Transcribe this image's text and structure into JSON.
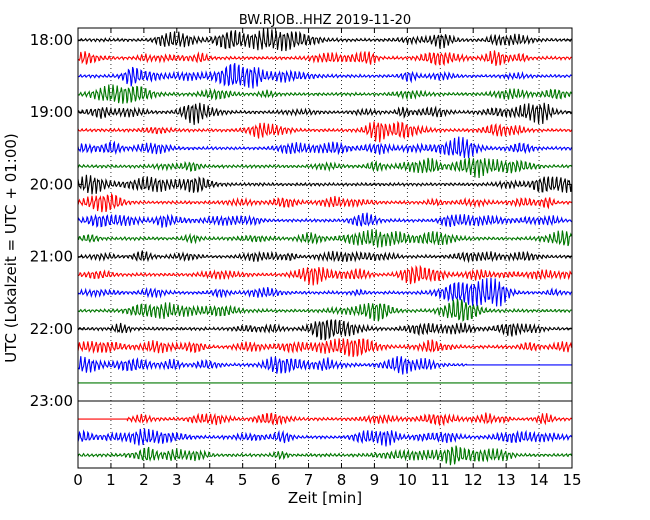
{
  "chart_data": {
    "type": "line",
    "title": "BW.RJOB..HHZ 2019-11-20",
    "xlabel": "Zeit  [min]",
    "ylabel": "UTC (Lokalzeit = UTC + 01:00)",
    "xlim": [
      0,
      15
    ],
    "xticks": [
      "0",
      "1",
      "2",
      "3",
      "4",
      "5",
      "6",
      "7",
      "8",
      "9",
      "10",
      "11",
      "12",
      "13",
      "14",
      "15"
    ],
    "yticks": [
      {
        "label": "18:00",
        "row": 0
      },
      {
        "label": "19:00",
        "row": 4
      },
      {
        "label": "20:00",
        "row": 8
      },
      {
        "label": "21:00",
        "row": 12
      },
      {
        "label": "22:00",
        "row": 16
      },
      {
        "label": "23:00",
        "row": 20
      }
    ],
    "row_interval_minutes": 15,
    "grid": "vertical dotted",
    "colors": [
      "#000000",
      "#ff0000",
      "#0000ff",
      "#007700"
    ],
    "traces": [
      {
        "start": "18:00",
        "color": "#000000",
        "data_start_min": 0,
        "data_end_min": 15
      },
      {
        "start": "18:15",
        "color": "#ff0000",
        "data_start_min": 0,
        "data_end_min": 15
      },
      {
        "start": "18:30",
        "color": "#0000ff",
        "data_start_min": 0,
        "data_end_min": 15
      },
      {
        "start": "18:45",
        "color": "#007700",
        "data_start_min": 0,
        "data_end_min": 15
      },
      {
        "start": "19:00",
        "color": "#000000",
        "data_start_min": 0,
        "data_end_min": 15
      },
      {
        "start": "19:15",
        "color": "#ff0000",
        "data_start_min": 0,
        "data_end_min": 15
      },
      {
        "start": "19:30",
        "color": "#0000ff",
        "data_start_min": 0,
        "data_end_min": 15
      },
      {
        "start": "19:45",
        "color": "#007700",
        "data_start_min": 0,
        "data_end_min": 15
      },
      {
        "start": "20:00",
        "color": "#000000",
        "data_start_min": 0,
        "data_end_min": 15
      },
      {
        "start": "20:15",
        "color": "#ff0000",
        "data_start_min": 0,
        "data_end_min": 15
      },
      {
        "start": "20:30",
        "color": "#0000ff",
        "data_start_min": 0,
        "data_end_min": 15
      },
      {
        "start": "20:45",
        "color": "#007700",
        "data_start_min": 0,
        "data_end_min": 15
      },
      {
        "start": "21:00",
        "color": "#000000",
        "data_start_min": 0,
        "data_end_min": 15
      },
      {
        "start": "21:15",
        "color": "#ff0000",
        "data_start_min": 0,
        "data_end_min": 15
      },
      {
        "start": "21:30",
        "color": "#0000ff",
        "data_start_min": 0,
        "data_end_min": 15
      },
      {
        "start": "21:45",
        "color": "#007700",
        "data_start_min": 0,
        "data_end_min": 15
      },
      {
        "start": "22:00",
        "color": "#000000",
        "data_start_min": 0,
        "data_end_min": 15
      },
      {
        "start": "22:15",
        "color": "#ff0000",
        "data_start_min": 0,
        "data_end_min": 15
      },
      {
        "start": "22:30",
        "color": "#0000ff",
        "data_start_min": 0,
        "data_end_min": 11.8
      },
      {
        "start": "22:45",
        "color": "#007700",
        "data_start_min": null,
        "data_end_min": null
      },
      {
        "start": "23:00",
        "color": "#000000",
        "data_start_min": null,
        "data_end_min": null
      },
      {
        "start": "23:15",
        "color": "#ff0000",
        "data_start_min": 1.5,
        "data_end_min": 15
      },
      {
        "start": "23:30",
        "color": "#0000ff",
        "data_start_min": 0,
        "data_end_min": 15
      },
      {
        "start": "23:45",
        "color": "#007700",
        "data_start_min": 0,
        "data_end_min": 15
      }
    ]
  }
}
